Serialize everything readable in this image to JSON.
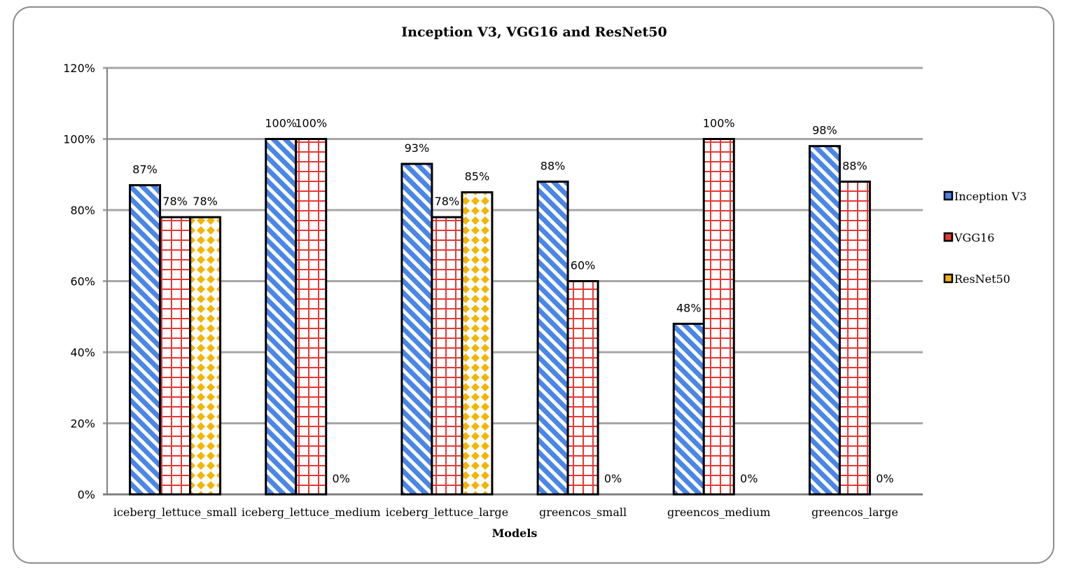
{
  "chart_data": {
    "type": "bar",
    "title": "Inception V3, VGG16 and ResNet50",
    "xlabel": "Models",
    "ylabel": "",
    "ylim": [
      0,
      120
    ],
    "y_tick_labels": [
      "0%",
      "20%",
      "40%",
      "60%",
      "80%",
      "100%",
      "120%"
    ],
    "grid": true,
    "legend_position": "right",
    "categories": [
      "iceberg_lettuce_small",
      "iceberg_lettuce_medium",
      "iceberg_lettuce_large",
      "greencos_small",
      "greencos_medium",
      "greencos_large"
    ],
    "series": [
      {
        "name": "Inception V3",
        "values": [
          87,
          100,
          93,
          88,
          48,
          98
        ],
        "labels": [
          "87%",
          "100%",
          "93%",
          "88%",
          "48%",
          "98%"
        ],
        "pattern": "diagonal-stripes",
        "color": "#4a86e8"
      },
      {
        "name": "VGG16",
        "values": [
          78,
          100,
          78,
          60,
          100,
          88
        ],
        "labels": [
          "78%",
          "100%",
          "78%",
          "60%",
          "100%",
          "88%"
        ],
        "pattern": "grid",
        "color": "#e53935"
      },
      {
        "name": "ResNet50",
        "values": [
          78,
          0,
          85,
          0,
          0,
          0
        ],
        "labels": [
          "78%",
          "0%",
          "85%",
          "0%",
          "0%",
          "0%"
        ],
        "pattern": "diamonds",
        "color": "#f4b400"
      }
    ]
  },
  "colors": {
    "gridline": "#a6a6a6",
    "frame": "#8c8c8c",
    "bar_outline": "#000000"
  }
}
